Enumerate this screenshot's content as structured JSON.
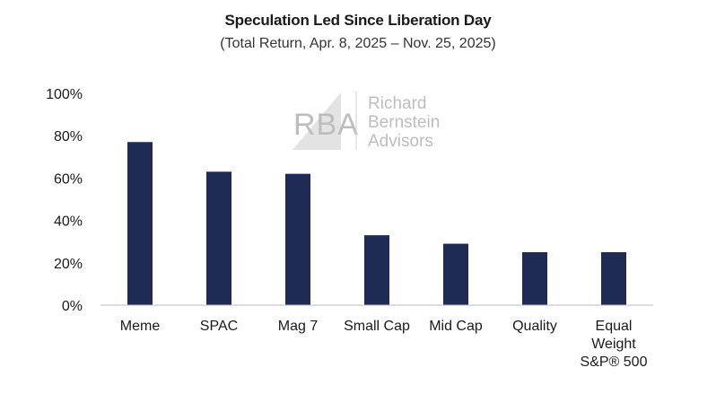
{
  "chart_data": {
    "type": "bar",
    "title": "Speculation Led Since Liberation Day",
    "subtitle": "(Total Return, Apr. 8, 2025 – Nov. 25, 2025)",
    "categories": [
      [
        "Meme"
      ],
      [
        "SPAC"
      ],
      [
        "Mag 7"
      ],
      [
        "Small Cap"
      ],
      [
        "Mid Cap"
      ],
      [
        "Quality"
      ],
      [
        "Equal",
        "Weight",
        "S&P® 500"
      ]
    ],
    "values": [
      77,
      63,
      62,
      33,
      29,
      25,
      25
    ],
    "ylim": [
      0,
      100
    ],
    "yticks": [
      0,
      20,
      40,
      60,
      80,
      100
    ],
    "ytick_format": "%",
    "xlabel": "",
    "ylabel": "",
    "grid": false,
    "bar_color": "#1f2a55"
  },
  "watermark": {
    "mark": "RBA",
    "lines": [
      "Richard",
      "Bernstein",
      "Advisors"
    ],
    "color": "#bdbdbd"
  }
}
